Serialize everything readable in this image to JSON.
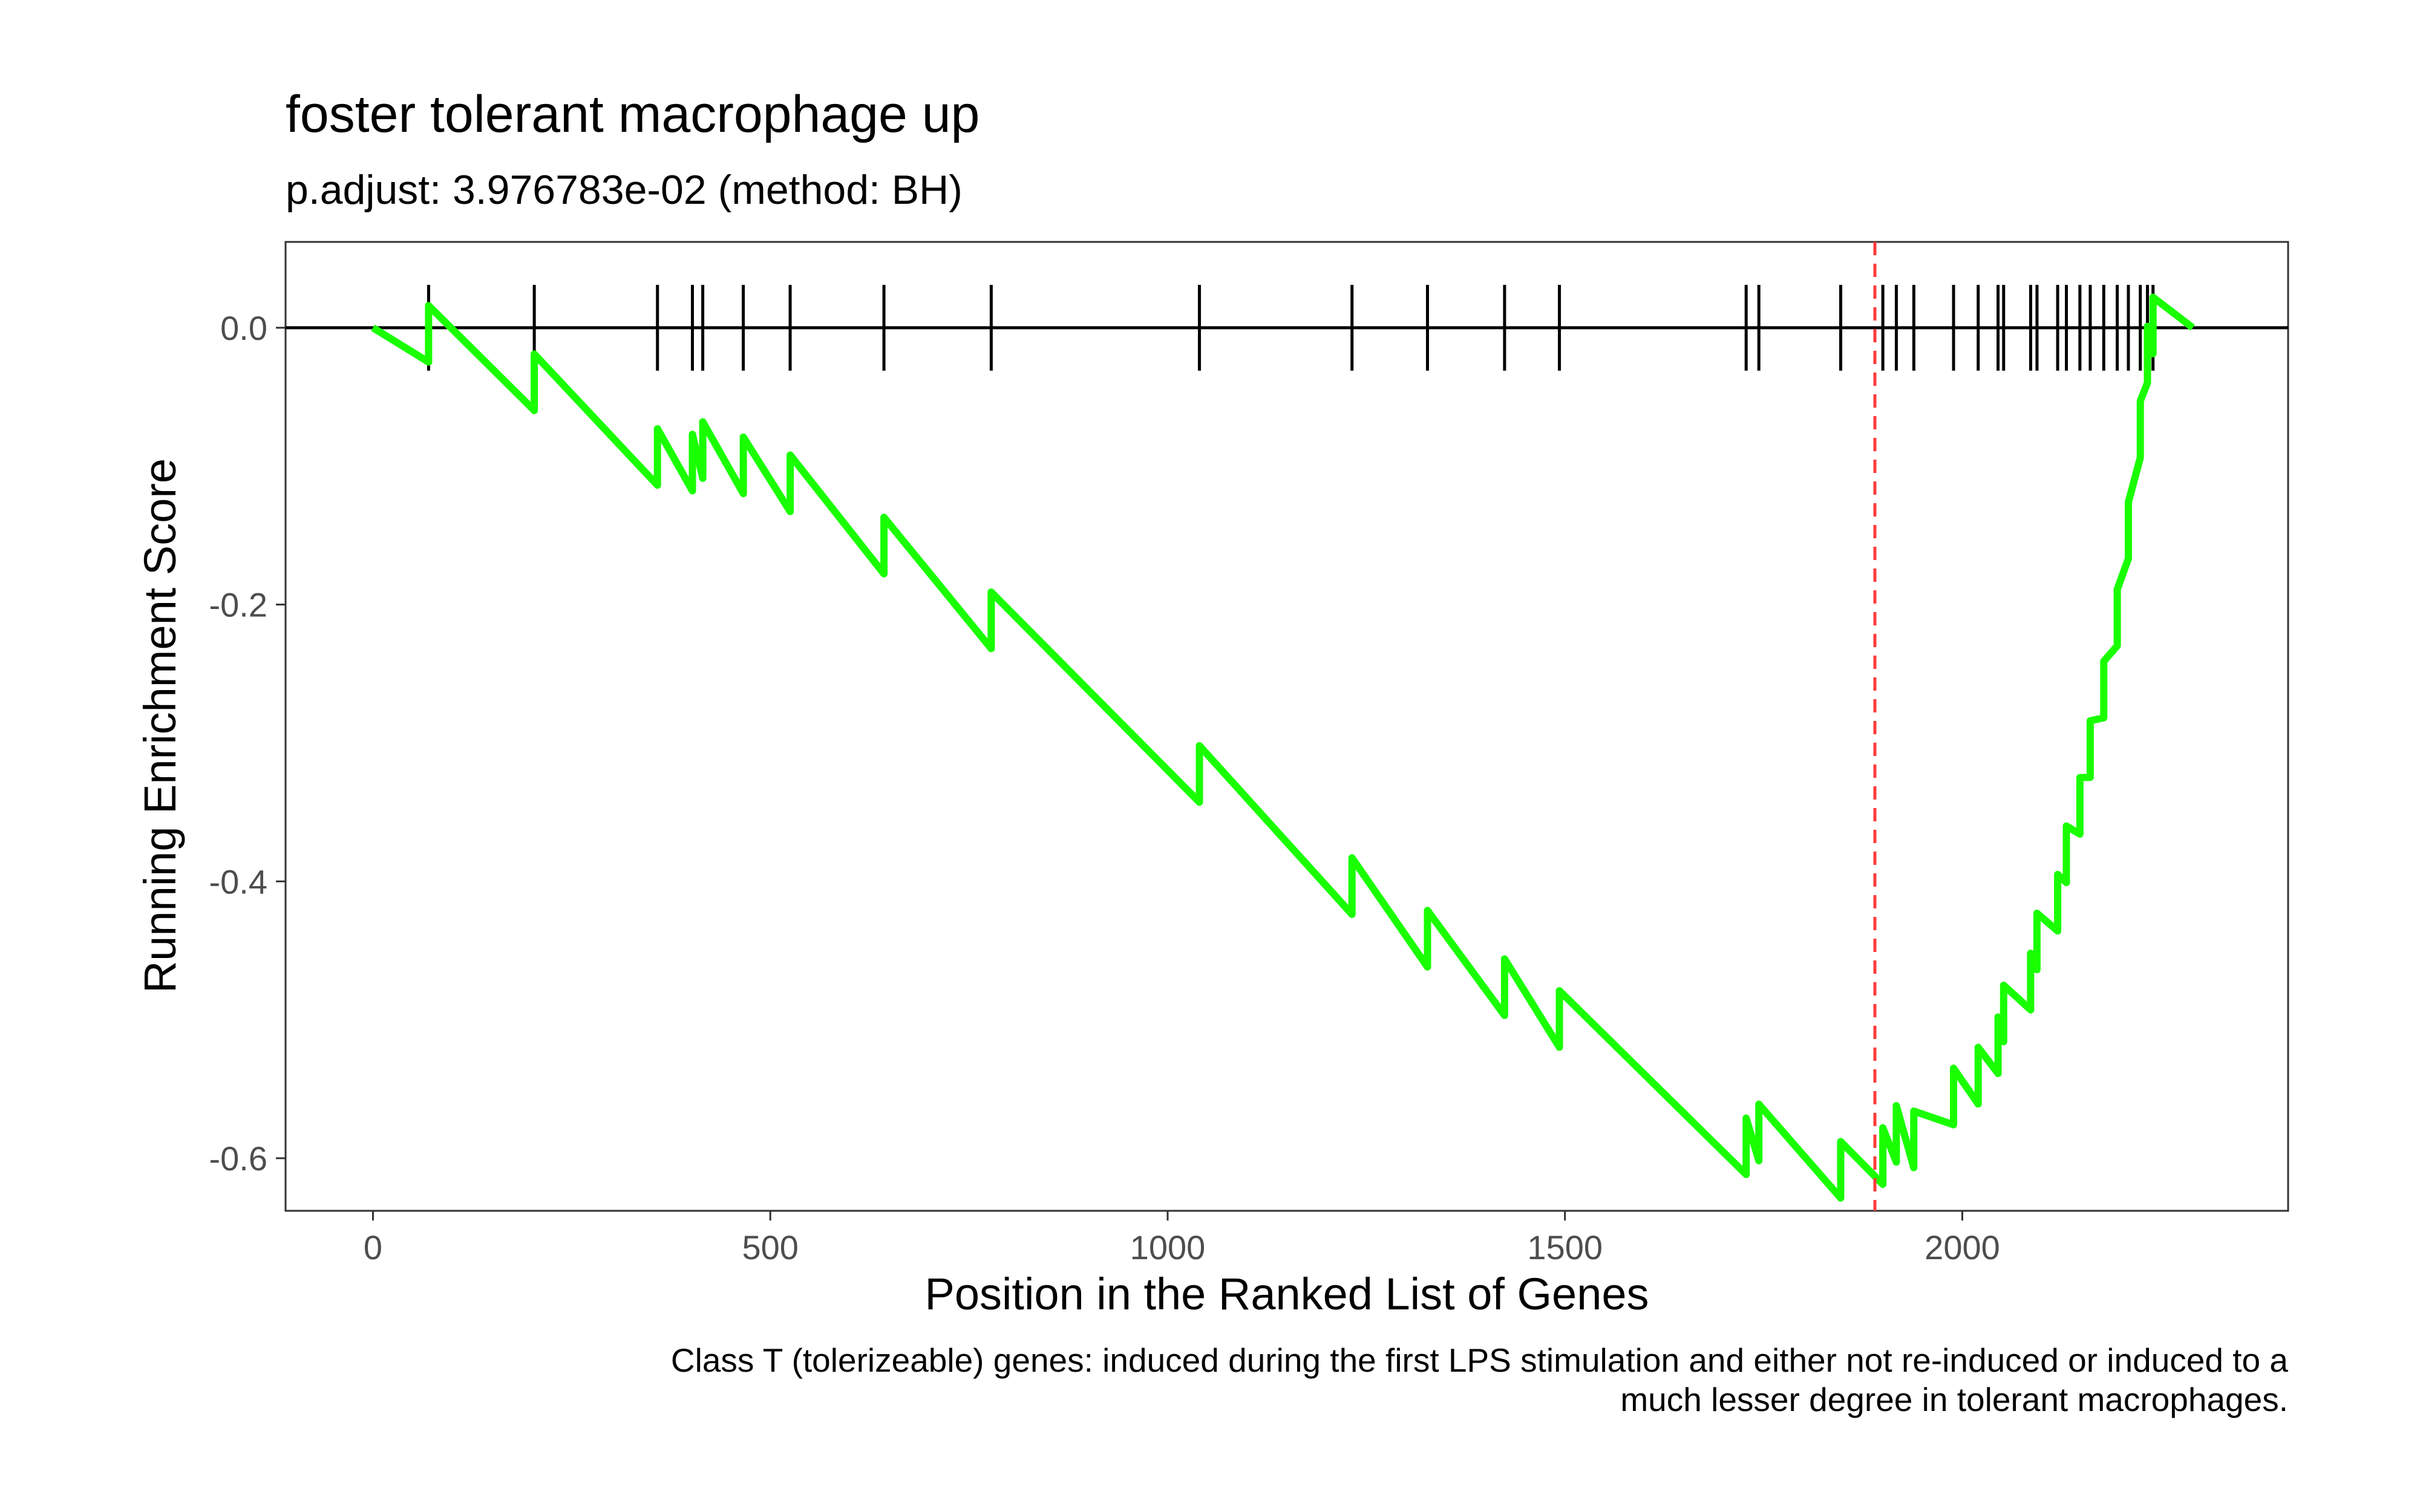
{
  "chart_data": {
    "type": "line",
    "title": "foster tolerant macrophage up",
    "subtitle": "p.adjust: 3.976783e-02 (method: BH)",
    "xlabel": "Position in the Ranked List of Genes",
    "ylabel": "Running Enrichment Score",
    "caption_lines": [
      "Class T (tolerizeable) genes: induced during the first LPS stimulation and either not re-induced or induced to a",
      "much lesser degree in tolerant macrophages."
    ],
    "xlim": [
      -110,
      2410
    ],
    "ylim": [
      -0.638,
      0.062
    ],
    "x_ticks": [
      0,
      500,
      1000,
      1500,
      2000
    ],
    "x_tick_labels": [
      "0",
      "500",
      "1000",
      "1500",
      "2000"
    ],
    "y_ticks": [
      0.0,
      -0.2,
      -0.4,
      -0.6
    ],
    "y_tick_labels": [
      "0.0",
      "-0.2",
      "-0.4",
      "-0.6"
    ],
    "grid": false,
    "line_color": "#19ff00",
    "rank_line_color": "#ff3b3b",
    "max_deviation_rank": 1890,
    "n_genes": 2290,
    "hit_positions": [
      70,
      203,
      358,
      402,
      415,
      466,
      525,
      643,
      778,
      1040,
      1232,
      1327,
      1424,
      1493,
      1728,
      1744,
      1847,
      1900,
      1917,
      1939,
      1989,
      2020,
      2045,
      2052,
      2086,
      2094,
      2120,
      2131,
      2148,
      2161,
      2178,
      2195,
      2209,
      2224,
      2233,
      2240
    ],
    "es_peak_values": [
      0.016,
      -0.019,
      -0.073,
      -0.077,
      -0.068,
      -0.079,
      -0.092,
      -0.137,
      -0.191,
      -0.302,
      -0.383,
      -0.421,
      -0.456,
      -0.479,
      -0.571,
      -0.561,
      -0.588,
      -0.578,
      -0.562,
      -0.566,
      -0.535,
      -0.52,
      -0.498,
      -0.475,
      -0.452,
      -0.423,
      -0.395,
      -0.36,
      -0.325,
      -0.284,
      -0.241,
      -0.189,
      -0.126,
      -0.053,
      0.001,
      0.022
    ]
  }
}
